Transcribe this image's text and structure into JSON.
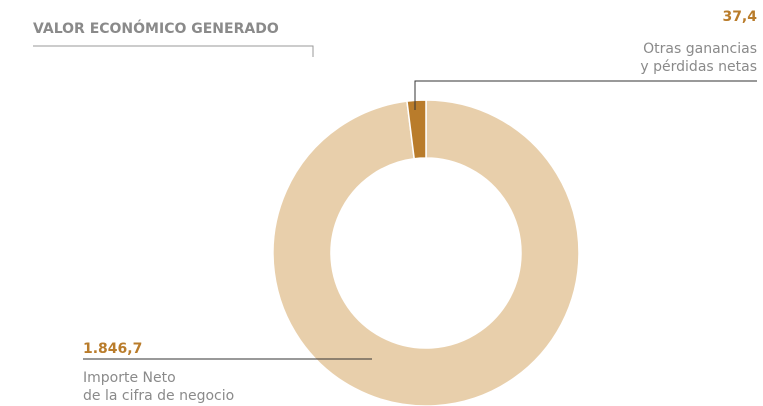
{
  "chart_data": {
    "type": "donut",
    "title": "VALOR ECONÓMICO GENERADO",
    "categories": [
      "Importe Neto\nde la cifra de negocio",
      "Otras ganancias\ny pérdidas netas"
    ],
    "values": [
      1846.7,
      37.4
    ],
    "value_labels": [
      "1.846,7",
      "37,4"
    ],
    "colors": [
      "#e8cfab",
      "#b97c2b"
    ]
  }
}
